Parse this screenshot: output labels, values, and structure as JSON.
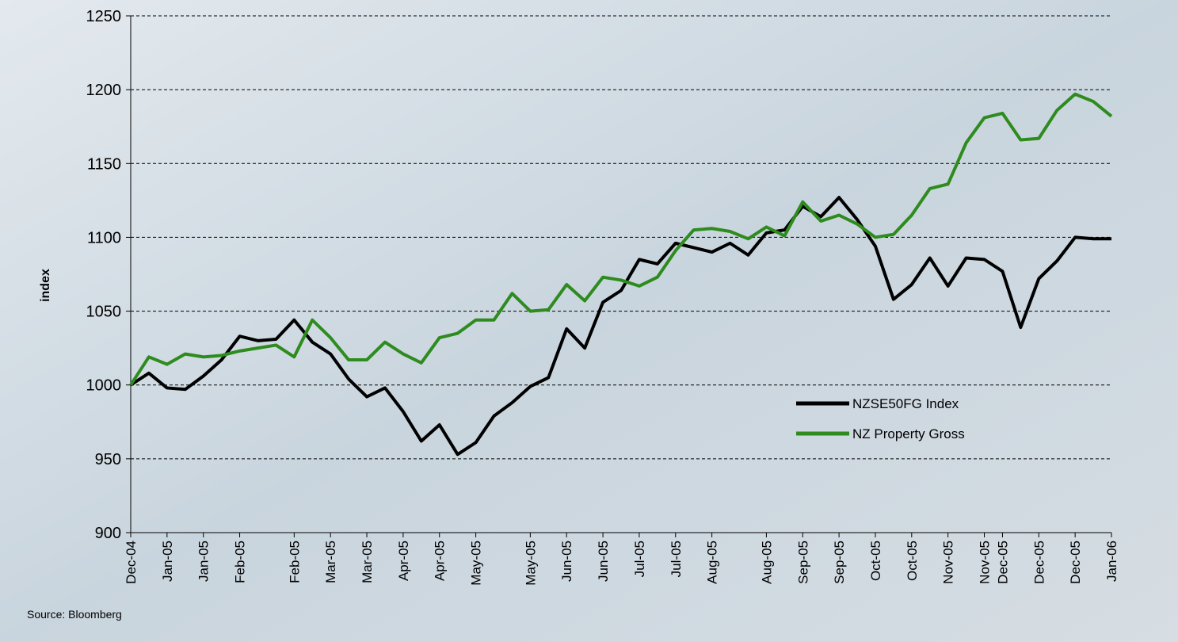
{
  "chart_data": {
    "type": "line",
    "y_label": "index",
    "source": "Source: Bloomberg",
    "categories": [
      "Dec-04",
      null,
      "Jan-05",
      null,
      "Jan-05",
      null,
      "Feb-05",
      null,
      null,
      "Feb-05",
      null,
      "Mar-05",
      null,
      "Mar-05",
      null,
      "Apr-05",
      null,
      "Apr-05",
      null,
      "May-05",
      null,
      null,
      "May-05",
      null,
      "Jun-05",
      null,
      "Jun-05",
      null,
      "Jul-05",
      null,
      "Jul-05",
      null,
      "Aug-05",
      null,
      null,
      "Aug-05",
      null,
      "Sep-05",
      null,
      "Sep-05",
      null,
      "Oct-05",
      null,
      "Oct-05",
      null,
      "Nov-05",
      null,
      "Nov-05",
      "Dec-05",
      null,
      "Dec-05",
      null,
      "Dec-05",
      null,
      "Jan-06"
    ],
    "series": [
      {
        "name": "NZSE50FG Index",
        "color": "#000000",
        "values": [
          1000,
          1008,
          998,
          997,
          1006,
          1017,
          1033,
          1030,
          1031,
          1044,
          1029,
          1021,
          1004,
          992,
          998,
          982,
          962,
          973,
          953,
          961,
          979,
          988,
          999,
          1005,
          1038,
          1025,
          1056,
          1064,
          1085,
          1082,
          1096,
          1093,
          1090,
          1096,
          1088,
          1103,
          1105,
          1121,
          1114,
          1127,
          1112,
          1094,
          1058,
          1068,
          1086,
          1067,
          1086,
          1085,
          1077,
          1039,
          1072,
          1084,
          1100,
          1099,
          1099
        ]
      },
      {
        "name": "NZ Property Gross",
        "color": "#2e8b1e",
        "values": [
          1000,
          1019,
          1014,
          1021,
          1019,
          1020,
          1023,
          1025,
          1027,
          1019,
          1044,
          1032,
          1017,
          1017,
          1029,
          1021,
          1015,
          1032,
          1035,
          1044,
          1044,
          1062,
          1050,
          1051,
          1068,
          1057,
          1073,
          1071,
          1067,
          1073,
          1091,
          1105,
          1106,
          1104,
          1099,
          1107,
          1101,
          1124,
          1111,
          1115,
          1109,
          1100,
          1102,
          1115,
          1133,
          1136,
          1164,
          1181,
          1184,
          1166,
          1167,
          1186,
          1197,
          1192,
          1182
        ]
      }
    ],
    "ylim": [
      900,
      1250
    ],
    "yticks": [
      900,
      950,
      1000,
      1050,
      1100,
      1150,
      1200,
      1250
    ],
    "grid": true
  }
}
